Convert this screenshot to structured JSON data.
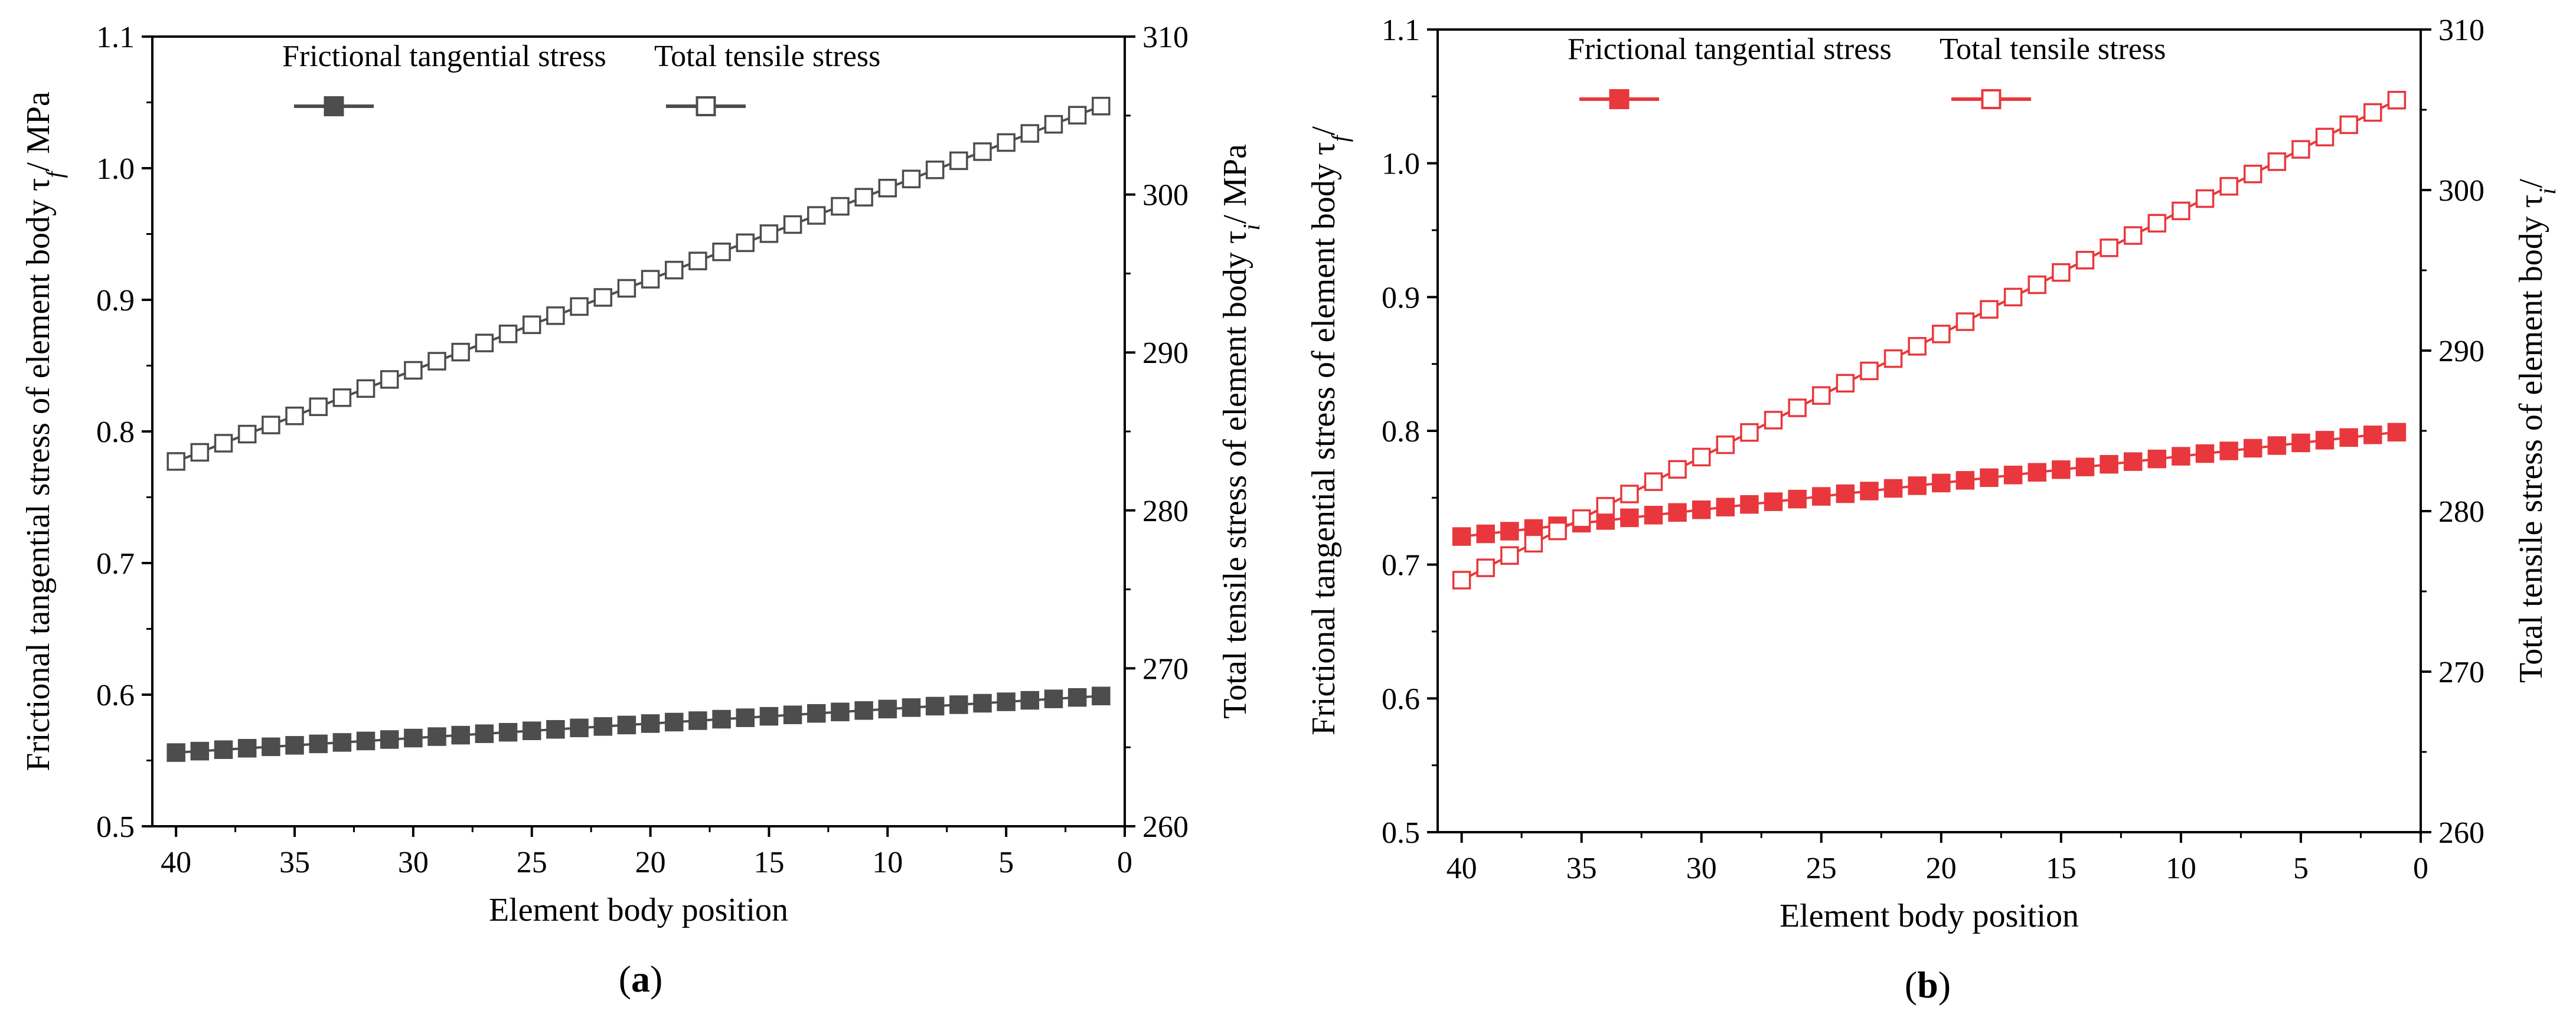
{
  "chart_data": [
    {
      "id": "a",
      "type": "line",
      "caption_letter": "a",
      "caption_open": "(",
      "caption_close": ")",
      "xlabel": "Element body position",
      "ylabel_left": "Frictional tangential stress of element body τf/ MPa",
      "ylabel_right": "Total tensile stress of element body τi/ MPa",
      "xlim": [
        41,
        0
      ],
      "ylim_left": [
        0.5,
        1.1
      ],
      "ylim_right": [
        260,
        310
      ],
      "xticks": [
        "40",
        "35",
        "30",
        "25",
        "20",
        "15",
        "10",
        "5",
        "0"
      ],
      "yticks_left": [
        "0.5",
        "0.6",
        "0.7",
        "0.8",
        "0.9",
        "1.0",
        "1.1"
      ],
      "yticks_right": [
        "260",
        "270",
        "280",
        "290",
        "300",
        "310"
      ],
      "legend": [
        "Frictional tangential stress",
        "Total tensile stress"
      ],
      "series_color": "#4d4d4d",
      "series": [
        {
          "name": "Frictional tangential stress",
          "axis": "left",
          "marker": "filled-square",
          "x_range": [
            40,
            1
          ],
          "y_start": 0.556,
          "y_end": 0.599
        },
        {
          "name": "Total tensile stress",
          "axis": "right",
          "marker": "open-square",
          "x_range": [
            40,
            1
          ],
          "y_start": 283.1,
          "y_end": 305.6
        }
      ]
    },
    {
      "id": "b",
      "type": "line",
      "caption_letter": "b",
      "caption_open": "(",
      "caption_close": ")",
      "xlabel": "Element body position",
      "ylabel_left": "Frictional tangential stress of element body τf/",
      "ylabel_right": "Total tensile stress of element body τi/",
      "xlim": [
        41,
        0
      ],
      "ylim_left": [
        0.5,
        1.1
      ],
      "ylim_right": [
        260,
        310
      ],
      "xticks": [
        "40",
        "35",
        "30",
        "25",
        "20",
        "15",
        "10",
        "5",
        "0"
      ],
      "yticks_left": [
        "0.5",
        "0.6",
        "0.7",
        "0.8",
        "0.9",
        "1.0",
        "1.1"
      ],
      "yticks_right": [
        "260",
        "270",
        "280",
        "290",
        "300",
        "310"
      ],
      "legend": [
        "Frictional tangential stress",
        "Total tensile stress"
      ],
      "series_color": "#e8383d",
      "series": [
        {
          "name": "Frictional tangential stress",
          "axis": "left",
          "marker": "filled-square",
          "x_range": [
            40,
            1
          ],
          "y_start": 0.721,
          "y_end": 0.799
        },
        {
          "name": "Total tensile stress",
          "axis": "right",
          "marker": "open-square",
          "x_range": [
            40,
            1
          ],
          "y_start": 275.7,
          "y_end": 305.6
        }
      ]
    }
  ]
}
